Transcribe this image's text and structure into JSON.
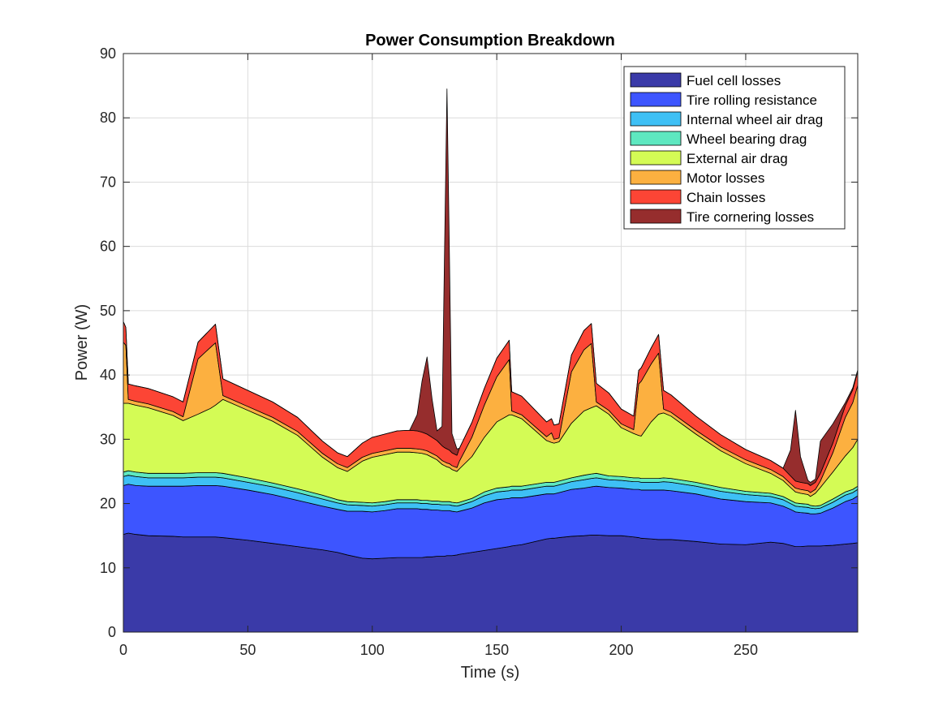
{
  "chart_data": {
    "type": "area",
    "title": "Power Consumption Breakdown",
    "xlabel": "Time (s)",
    "ylabel": "Power (W)",
    "xlim": [
      0,
      295
    ],
    "ylim": [
      0,
      90
    ],
    "xticks": [
      0,
      50,
      100,
      150,
      200,
      250
    ],
    "yticks": [
      0,
      10,
      20,
      30,
      40,
      50,
      60,
      70,
      80,
      90
    ],
    "grid": true,
    "stacked": true,
    "legend_position": "top-right",
    "x": [
      0,
      1,
      2,
      5,
      10,
      20,
      24,
      30,
      35,
      37,
      40,
      50,
      60,
      70,
      80,
      86,
      90,
      96,
      100,
      105,
      110,
      115,
      118,
      120,
      122,
      124,
      126,
      128,
      129,
      130,
      131,
      132,
      134,
      135,
      140,
      145,
      150,
      155,
      156,
      160,
      170,
      172,
      173,
      175,
      180,
      185,
      188,
      190,
      195,
      200,
      205,
      207,
      208,
      212,
      215,
      217,
      220,
      230,
      240,
      250,
      260,
      265,
      268,
      270,
      272,
      275,
      276,
      278,
      280,
      285,
      290,
      293,
      295
    ],
    "series": [
      {
        "name": "Fuel cell losses",
        "color": "#3a3aa8",
        "values": [
          15.2,
          15.3,
          15.4,
          15.2,
          15.0,
          14.9,
          14.8,
          14.8,
          14.8,
          14.8,
          14.7,
          14.3,
          13.8,
          13.3,
          12.8,
          12.4,
          12.0,
          11.5,
          11.4,
          11.5,
          11.6,
          11.6,
          11.6,
          11.6,
          11.7,
          11.7,
          11.8,
          11.8,
          11.8,
          11.9,
          11.9,
          11.9,
          12.0,
          12.1,
          12.4,
          12.7,
          13.0,
          13.3,
          13.4,
          13.6,
          14.5,
          14.6,
          14.6,
          14.7,
          14.9,
          15.0,
          15.1,
          15.1,
          15.0,
          15.0,
          14.8,
          14.7,
          14.6,
          14.5,
          14.4,
          14.4,
          14.4,
          14.1,
          13.7,
          13.6,
          14.0,
          13.8,
          13.5,
          13.3,
          13.3,
          13.4,
          13.4,
          13.4,
          13.4,
          13.5,
          13.7,
          13.8,
          13.9
        ]
      },
      {
        "name": "Tire rolling resistance",
        "color": "#3d55ff",
        "values": [
          7.6,
          7.6,
          7.6,
          7.6,
          7.7,
          7.8,
          7.9,
          8.0,
          8.0,
          8.0,
          8.0,
          7.8,
          7.6,
          7.2,
          6.8,
          6.7,
          6.8,
          7.3,
          7.3,
          7.4,
          7.6,
          7.6,
          7.6,
          7.5,
          7.4,
          7.3,
          7.2,
          7.1,
          7.1,
          7.0,
          7.0,
          6.9,
          6.7,
          6.7,
          6.9,
          7.4,
          7.6,
          7.5,
          7.5,
          7.3,
          7.0,
          6.9,
          6.9,
          7.0,
          7.3,
          7.4,
          7.5,
          7.6,
          7.5,
          7.4,
          7.4,
          7.5,
          7.5,
          7.6,
          7.7,
          7.7,
          7.6,
          7.4,
          7.0,
          6.7,
          6.1,
          5.8,
          5.6,
          5.4,
          5.3,
          5.1,
          5.0,
          5.0,
          5.1,
          5.8,
          6.6,
          6.9,
          7.3
        ]
      },
      {
        "name": "Internal wheel air drag",
        "color": "#3ec0f5",
        "values": [
          1.4,
          1.4,
          1.4,
          1.4,
          1.3,
          1.3,
          1.3,
          1.3,
          1.3,
          1.3,
          1.3,
          1.2,
          1.2,
          1.2,
          1.1,
          1.0,
          1.0,
          0.9,
          0.9,
          0.9,
          0.9,
          0.9,
          0.9,
          0.9,
          0.9,
          0.9,
          0.9,
          0.9,
          0.9,
          0.9,
          0.9,
          0.9,
          0.9,
          0.9,
          1.0,
          1.1,
          1.2,
          1.2,
          1.2,
          1.2,
          1.2,
          1.2,
          1.2,
          1.2,
          1.2,
          1.3,
          1.3,
          1.3,
          1.2,
          1.2,
          1.2,
          1.2,
          1.2,
          1.2,
          1.2,
          1.3,
          1.3,
          1.2,
          1.2,
          1.1,
          1.0,
          1.0,
          0.9,
          0.9,
          0.9,
          0.9,
          0.9,
          0.8,
          0.8,
          0.9,
          1.0,
          1.0,
          1.0
        ]
      },
      {
        "name": "Wheel bearing drag",
        "color": "#5ee8c0",
        "values": [
          0.7,
          0.7,
          0.7,
          0.7,
          0.7,
          0.7,
          0.7,
          0.7,
          0.7,
          0.7,
          0.7,
          0.7,
          0.6,
          0.6,
          0.6,
          0.5,
          0.5,
          0.5,
          0.5,
          0.5,
          0.5,
          0.5,
          0.5,
          0.5,
          0.5,
          0.5,
          0.5,
          0.5,
          0.5,
          0.5,
          0.5,
          0.5,
          0.5,
          0.5,
          0.5,
          0.6,
          0.6,
          0.6,
          0.6,
          0.6,
          0.6,
          0.6,
          0.6,
          0.6,
          0.6,
          0.7,
          0.7,
          0.7,
          0.6,
          0.6,
          0.6,
          0.6,
          0.6,
          0.6,
          0.6,
          0.6,
          0.6,
          0.6,
          0.6,
          0.5,
          0.5,
          0.5,
          0.5,
          0.5,
          0.5,
          0.5,
          0.4,
          0.4,
          0.4,
          0.5,
          0.5,
          0.5,
          0.5
        ]
      },
      {
        "name": "External air drag",
        "color": "#d4fb55",
        "values": [
          10.7,
          10.6,
          10.5,
          10.4,
          10.2,
          9.0,
          8.2,
          9.1,
          10.0,
          10.5,
          11.5,
          10.5,
          9.6,
          8.3,
          5.9,
          5.0,
          4.7,
          6.4,
          7.1,
          7.3,
          7.4,
          7.4,
          7.3,
          7.3,
          7.1,
          6.8,
          6.4,
          5.8,
          5.6,
          5.4,
          5.3,
          5.1,
          4.9,
          5.2,
          6.5,
          8.5,
          10.3,
          11.2,
          11.1,
          10.5,
          6.5,
          6.2,
          6.1,
          6.1,
          8.5,
          10.0,
          10.3,
          10.5,
          9.6,
          7.6,
          6.9,
          6.6,
          6.6,
          8.8,
          10.0,
          10.1,
          9.7,
          7.5,
          5.7,
          4.3,
          3.1,
          2.5,
          2.0,
          1.7,
          1.6,
          1.5,
          1.4,
          2.0,
          2.8,
          4.2,
          5.6,
          6.5,
          7.3
        ]
      },
      {
        "name": "Motor losses",
        "color": "#fcb040",
        "values": [
          9.5,
          9.0,
          0.6,
          0.6,
          0.6,
          0.6,
          0.6,
          8.6,
          9.5,
          9.7,
          0.6,
          0.6,
          0.6,
          0.6,
          0.6,
          0.6,
          0.6,
          0.6,
          0.6,
          0.6,
          0.6,
          0.6,
          0.6,
          0.6,
          0.6,
          0.6,
          0.6,
          0.6,
          0.6,
          0.6,
          0.6,
          0.6,
          0.6,
          1.2,
          3.0,
          5.0,
          7.0,
          8.6,
          0.6,
          0.6,
          0.6,
          1.5,
          0.6,
          0.6,
          8.0,
          9.5,
          10.0,
          0.6,
          0.6,
          0.6,
          0.6,
          8.0,
          8.5,
          9.0,
          9.5,
          0.6,
          0.6,
          0.6,
          0.6,
          0.6,
          0.6,
          0.6,
          0.6,
          0.6,
          0.6,
          0.6,
          0.6,
          0.6,
          1.0,
          3.0,
          6.0,
          7.0,
          8.4
        ]
      },
      {
        "name": "Chain losses",
        "color": "#fc4535",
        "values": [
          3.2,
          2.8,
          2.4,
          2.4,
          2.4,
          2.3,
          2.3,
          2.6,
          2.8,
          2.9,
          2.6,
          2.5,
          2.4,
          2.2,
          1.9,
          1.7,
          1.7,
          2.2,
          2.5,
          2.6,
          2.7,
          2.8,
          2.8,
          2.7,
          2.6,
          2.5,
          2.4,
          2.3,
          2.2,
          2.2,
          2.1,
          2.0,
          1.9,
          2.0,
          2.3,
          2.6,
          2.9,
          3.0,
          3.0,
          2.9,
          2.3,
          2.2,
          2.2,
          2.2,
          2.6,
          3.0,
          3.1,
          2.9,
          2.7,
          2.3,
          2.1,
          2.1,
          2.1,
          2.5,
          2.9,
          2.9,
          2.7,
          2.2,
          1.9,
          1.6,
          1.4,
          1.3,
          1.2,
          1.1,
          1.1,
          1.1,
          1.1,
          1.1,
          1.2,
          1.5,
          1.8,
          2.0,
          2.2
        ]
      },
      {
        "name": "Tire cornering losses",
        "color": "#962d2d",
        "values": [
          0,
          0,
          0,
          0,
          0,
          0,
          0,
          0,
          0,
          0,
          0,
          0,
          0,
          0,
          0,
          0,
          0,
          0,
          0,
          0,
          0,
          0,
          2.5,
          8.0,
          12.0,
          6.0,
          1.5,
          3.0,
          30.0,
          56.0,
          30.0,
          3.0,
          1.0,
          0,
          0,
          0,
          0,
          0,
          0,
          0,
          0,
          0,
          0,
          0,
          0,
          0,
          0,
          0,
          0,
          0,
          0,
          0,
          0,
          0,
          0,
          0,
          0,
          0,
          0,
          0,
          0,
          0,
          4.0,
          11.0,
          4.0,
          0.5,
          0.5,
          0.5,
          5.0,
          3.0,
          0.5,
          0.3,
          0.2
        ]
      }
    ]
  }
}
